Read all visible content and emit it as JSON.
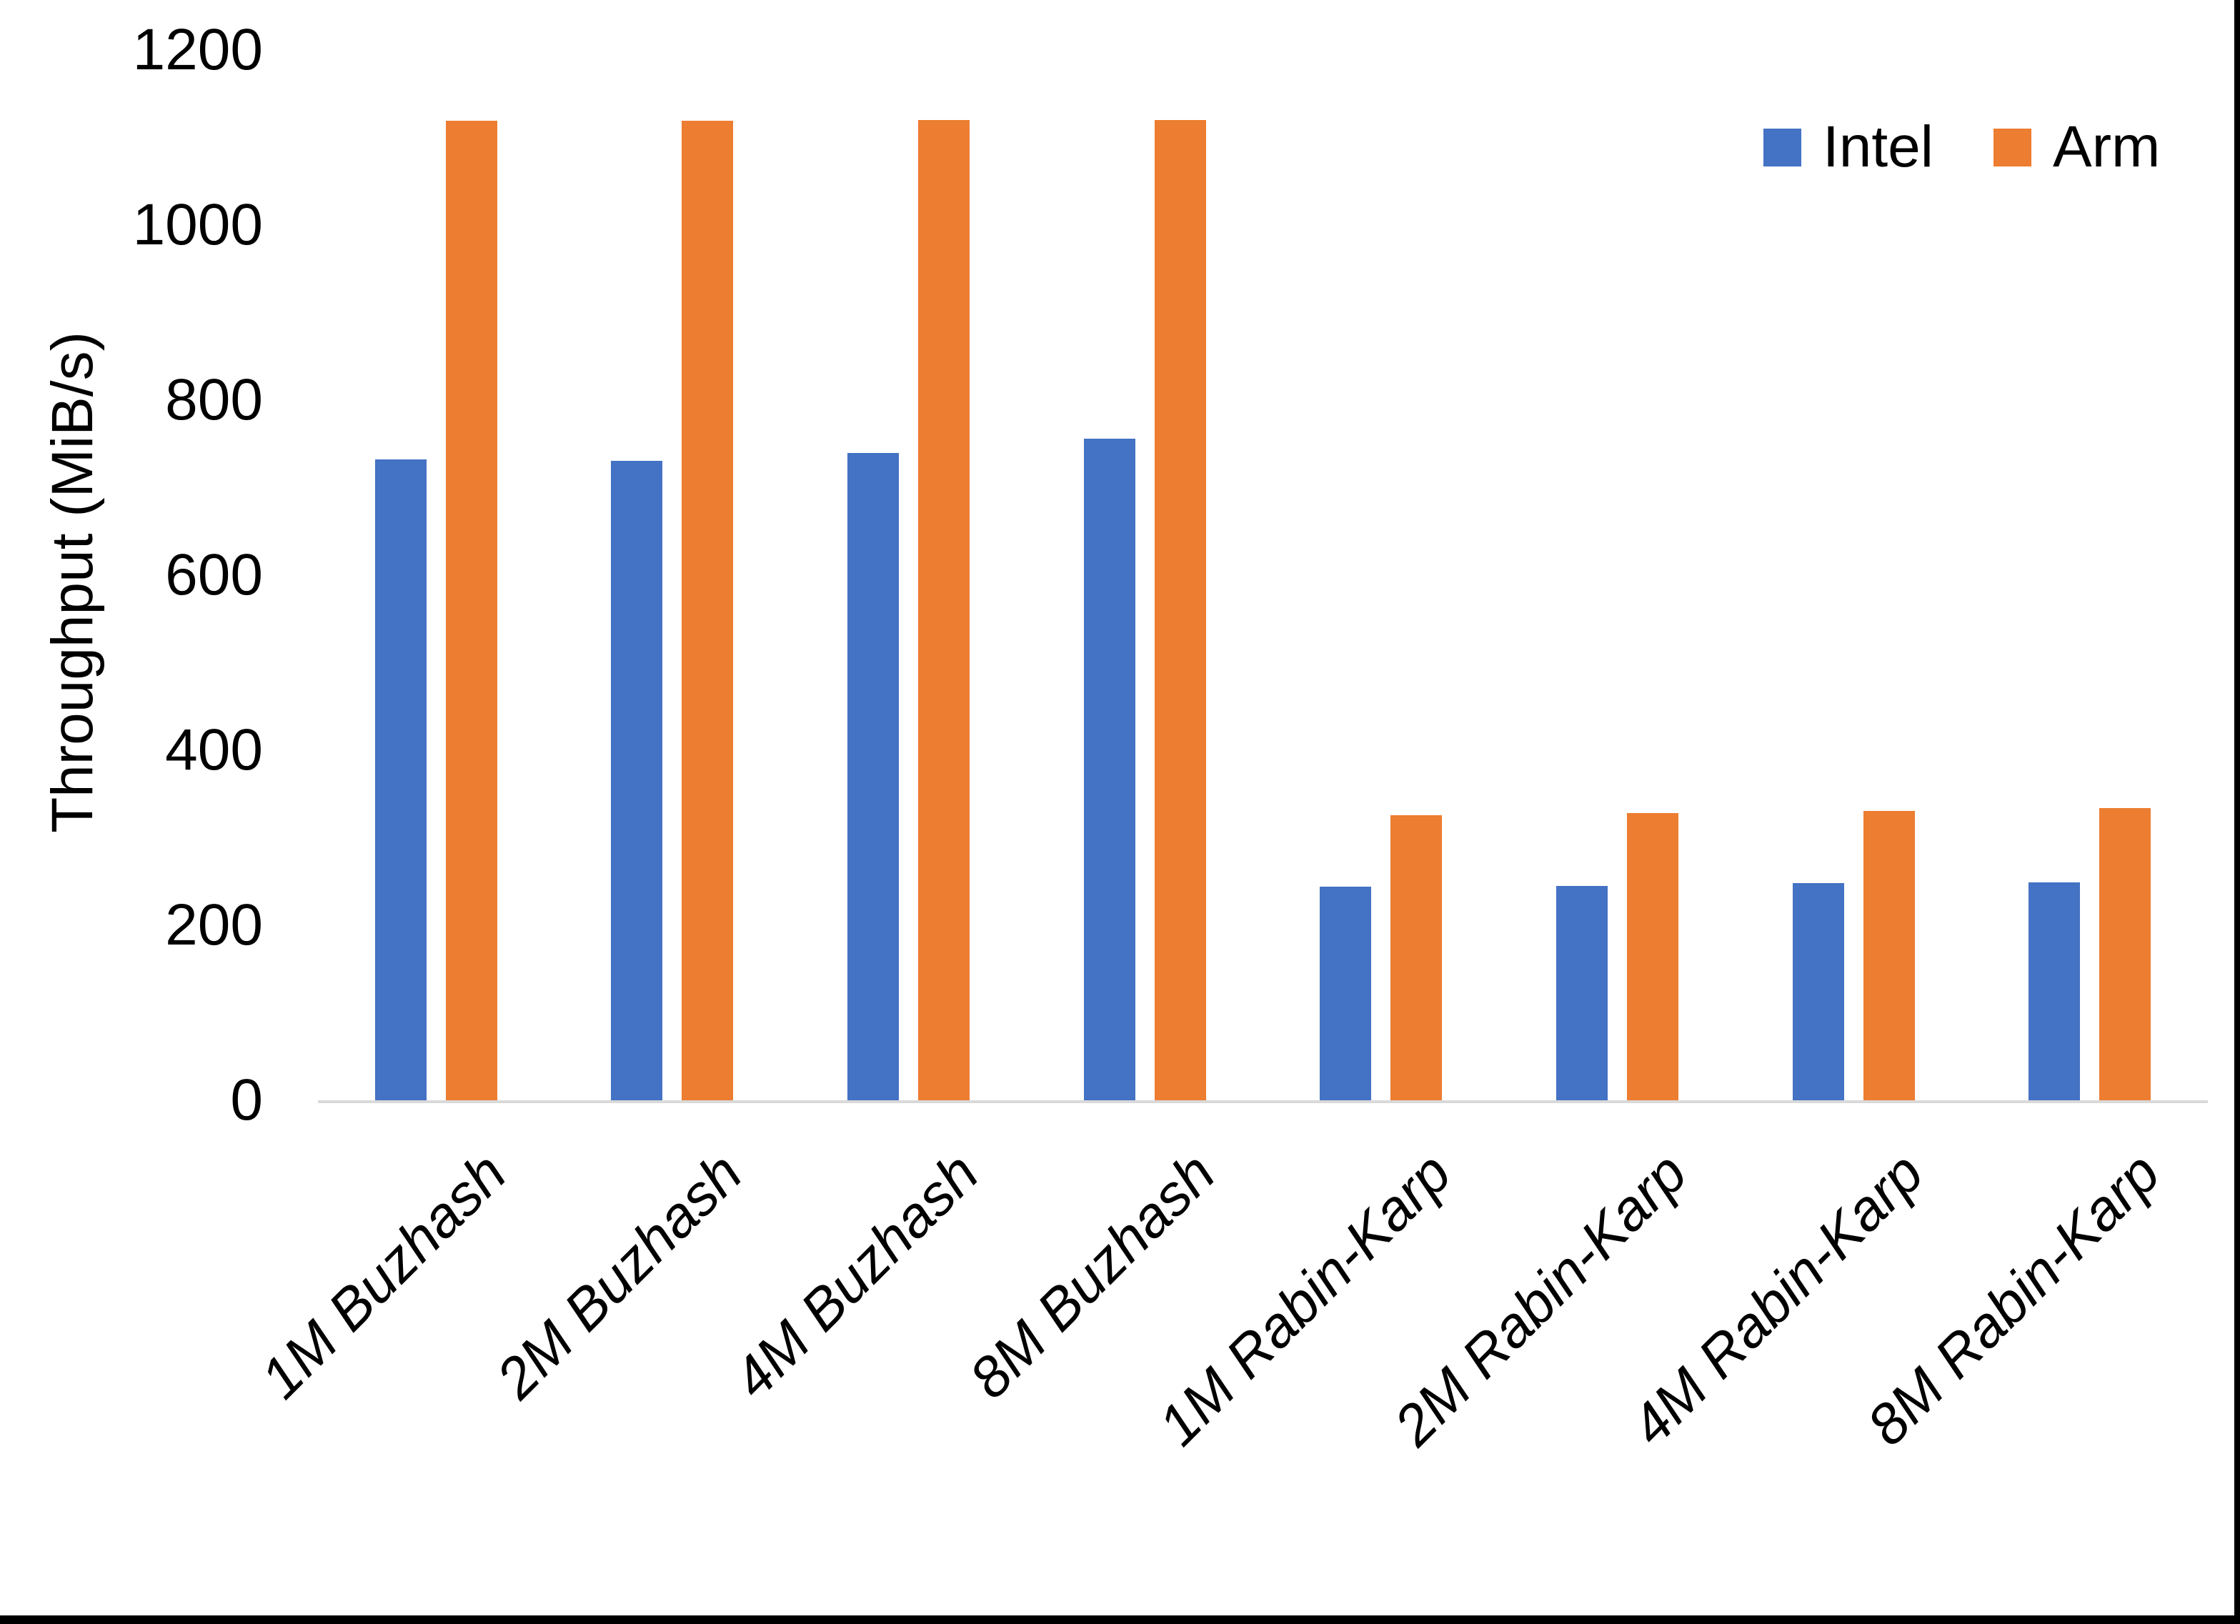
{
  "chart_data": {
    "type": "bar",
    "title": "",
    "xlabel": "",
    "ylabel": "Throughput (MiB/s)",
    "categories": [
      "1M Buzhash",
      "2M Buzhash",
      "4M Buzhash",
      "8M Buzhash",
      "1M Rabin-Karp",
      "2M Rabin-Karp",
      "4M Rabin-Karp",
      "8M Rabin-Karp"
    ],
    "series": [
      {
        "name": "Intel",
        "color": "#4472C4",
        "values": [
          732,
          731,
          740,
          756,
          244,
          245,
          248,
          249
        ]
      },
      {
        "name": "Arm",
        "color": "#ED7D31",
        "values": [
          1119,
          1119,
          1120,
          1120,
          326,
          328,
          331,
          334
        ]
      }
    ],
    "ylim": [
      0,
      1200
    ],
    "yticks": [
      0,
      200,
      400,
      600,
      800,
      1000,
      1200
    ],
    "grid": false,
    "legend_position": "top-right",
    "axis_line_color": "#d9d9d9"
  },
  "frame": {
    "background": "#ffffff",
    "border_color": "#000000"
  }
}
